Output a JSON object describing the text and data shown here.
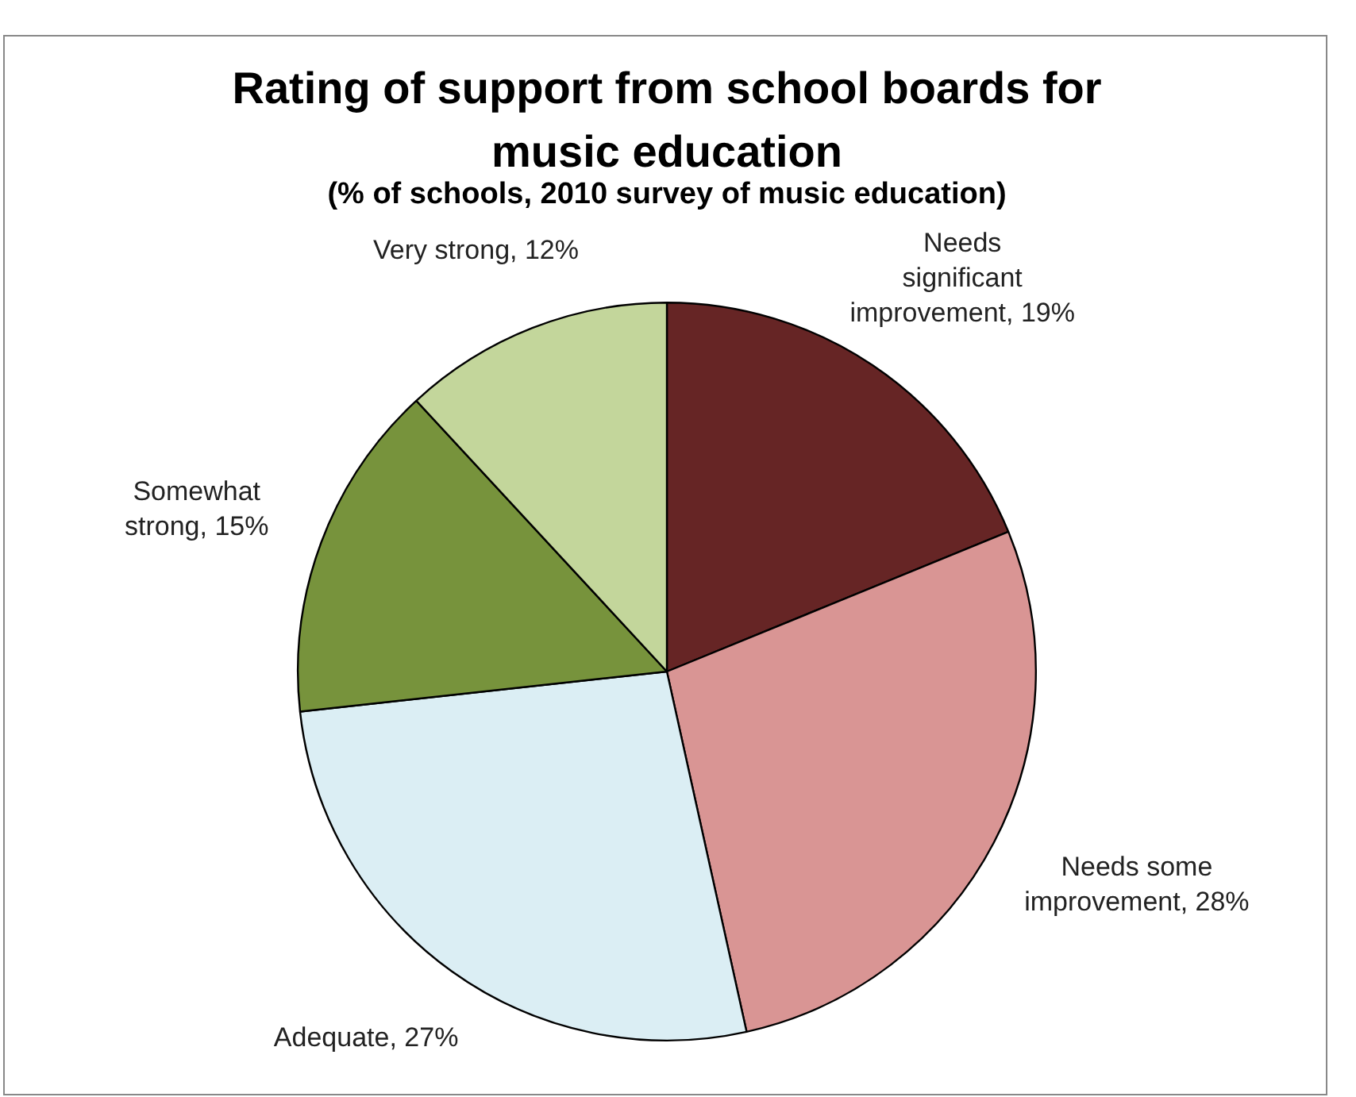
{
  "chart_data": {
    "type": "pie",
    "title": "Rating of support from school boards for music education",
    "subtitle": "(% of schools, 2010 survey of music education)",
    "categories": [
      "Needs significant improvement",
      "Needs some improvement",
      "Adequate",
      "Somewhat strong",
      "Very strong"
    ],
    "values": [
      19,
      28,
      27,
      15,
      12
    ],
    "value_labels": [
      "19%",
      "28%",
      "27%",
      "15%",
      "12%"
    ],
    "colors": [
      "#662525",
      "#d99594",
      "#dbeef4",
      "#77933c",
      "#c3d69b"
    ],
    "legend": false
  }
}
